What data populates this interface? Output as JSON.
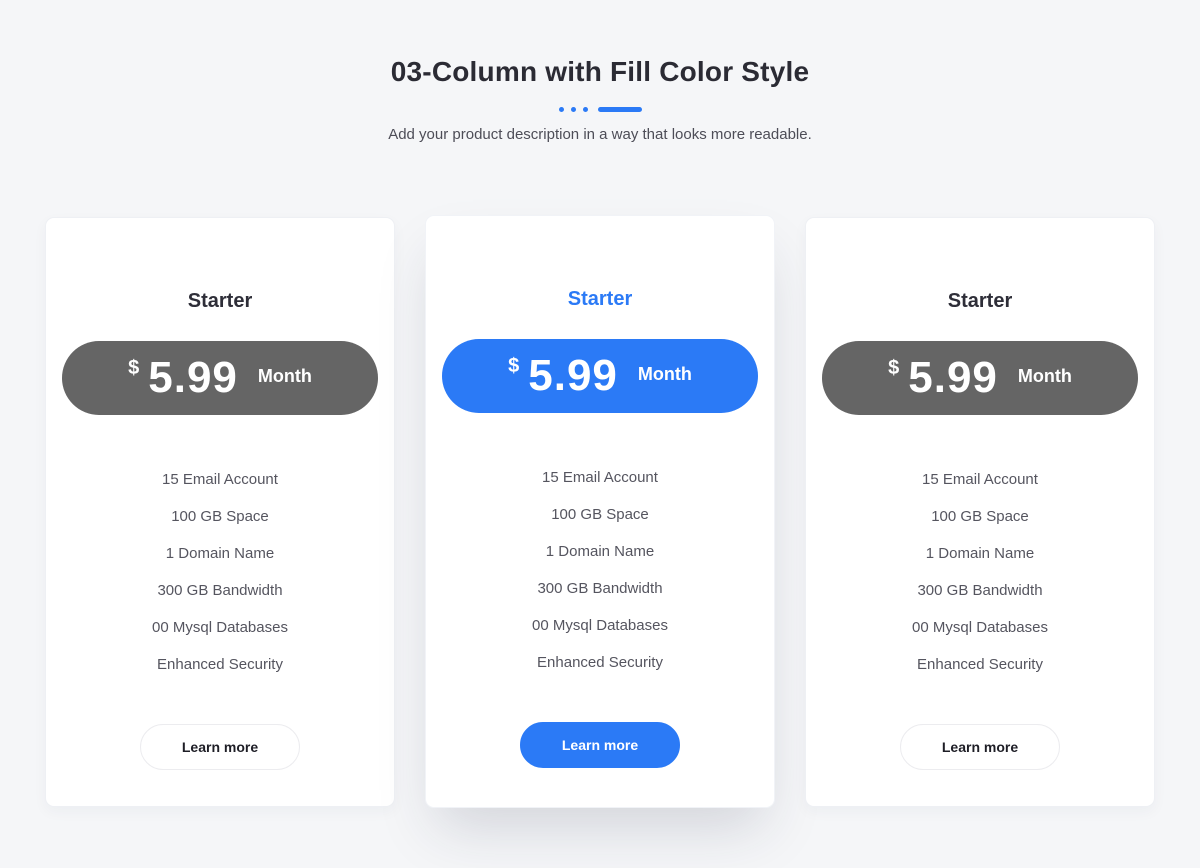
{
  "theme": {
    "accent": "#2b7af6",
    "pill_gray": "#656565",
    "page_bg": "#f5f6f8"
  },
  "header": {
    "title": "03-Column with Fill Color Style",
    "subtitle": "Add your product description in a way that looks more readable."
  },
  "plans": [
    {
      "name": "Starter",
      "currency": "$",
      "price": "5.99",
      "period": "Month",
      "features": [
        "15 Email Account",
        "100 GB Space",
        "1 Domain Name",
        "300 GB Bandwidth",
        "00 Mysql Databases",
        "Enhanced Security"
      ],
      "cta": "Learn more",
      "featured": false
    },
    {
      "name": "Starter",
      "currency": "$",
      "price": "5.99",
      "period": "Month",
      "features": [
        "15 Email Account",
        "100 GB Space",
        "1 Domain Name",
        "300 GB Bandwidth",
        "00 Mysql Databases",
        "Enhanced Security"
      ],
      "cta": "Learn more",
      "featured": true
    },
    {
      "name": "Starter",
      "currency": "$",
      "price": "5.99",
      "period": "Month",
      "features": [
        "15 Email Account",
        "100 GB Space",
        "1 Domain Name",
        "300 GB Bandwidth",
        "00 Mysql Databases",
        "Enhanced Security"
      ],
      "cta": "Learn more",
      "featured": false
    }
  ]
}
